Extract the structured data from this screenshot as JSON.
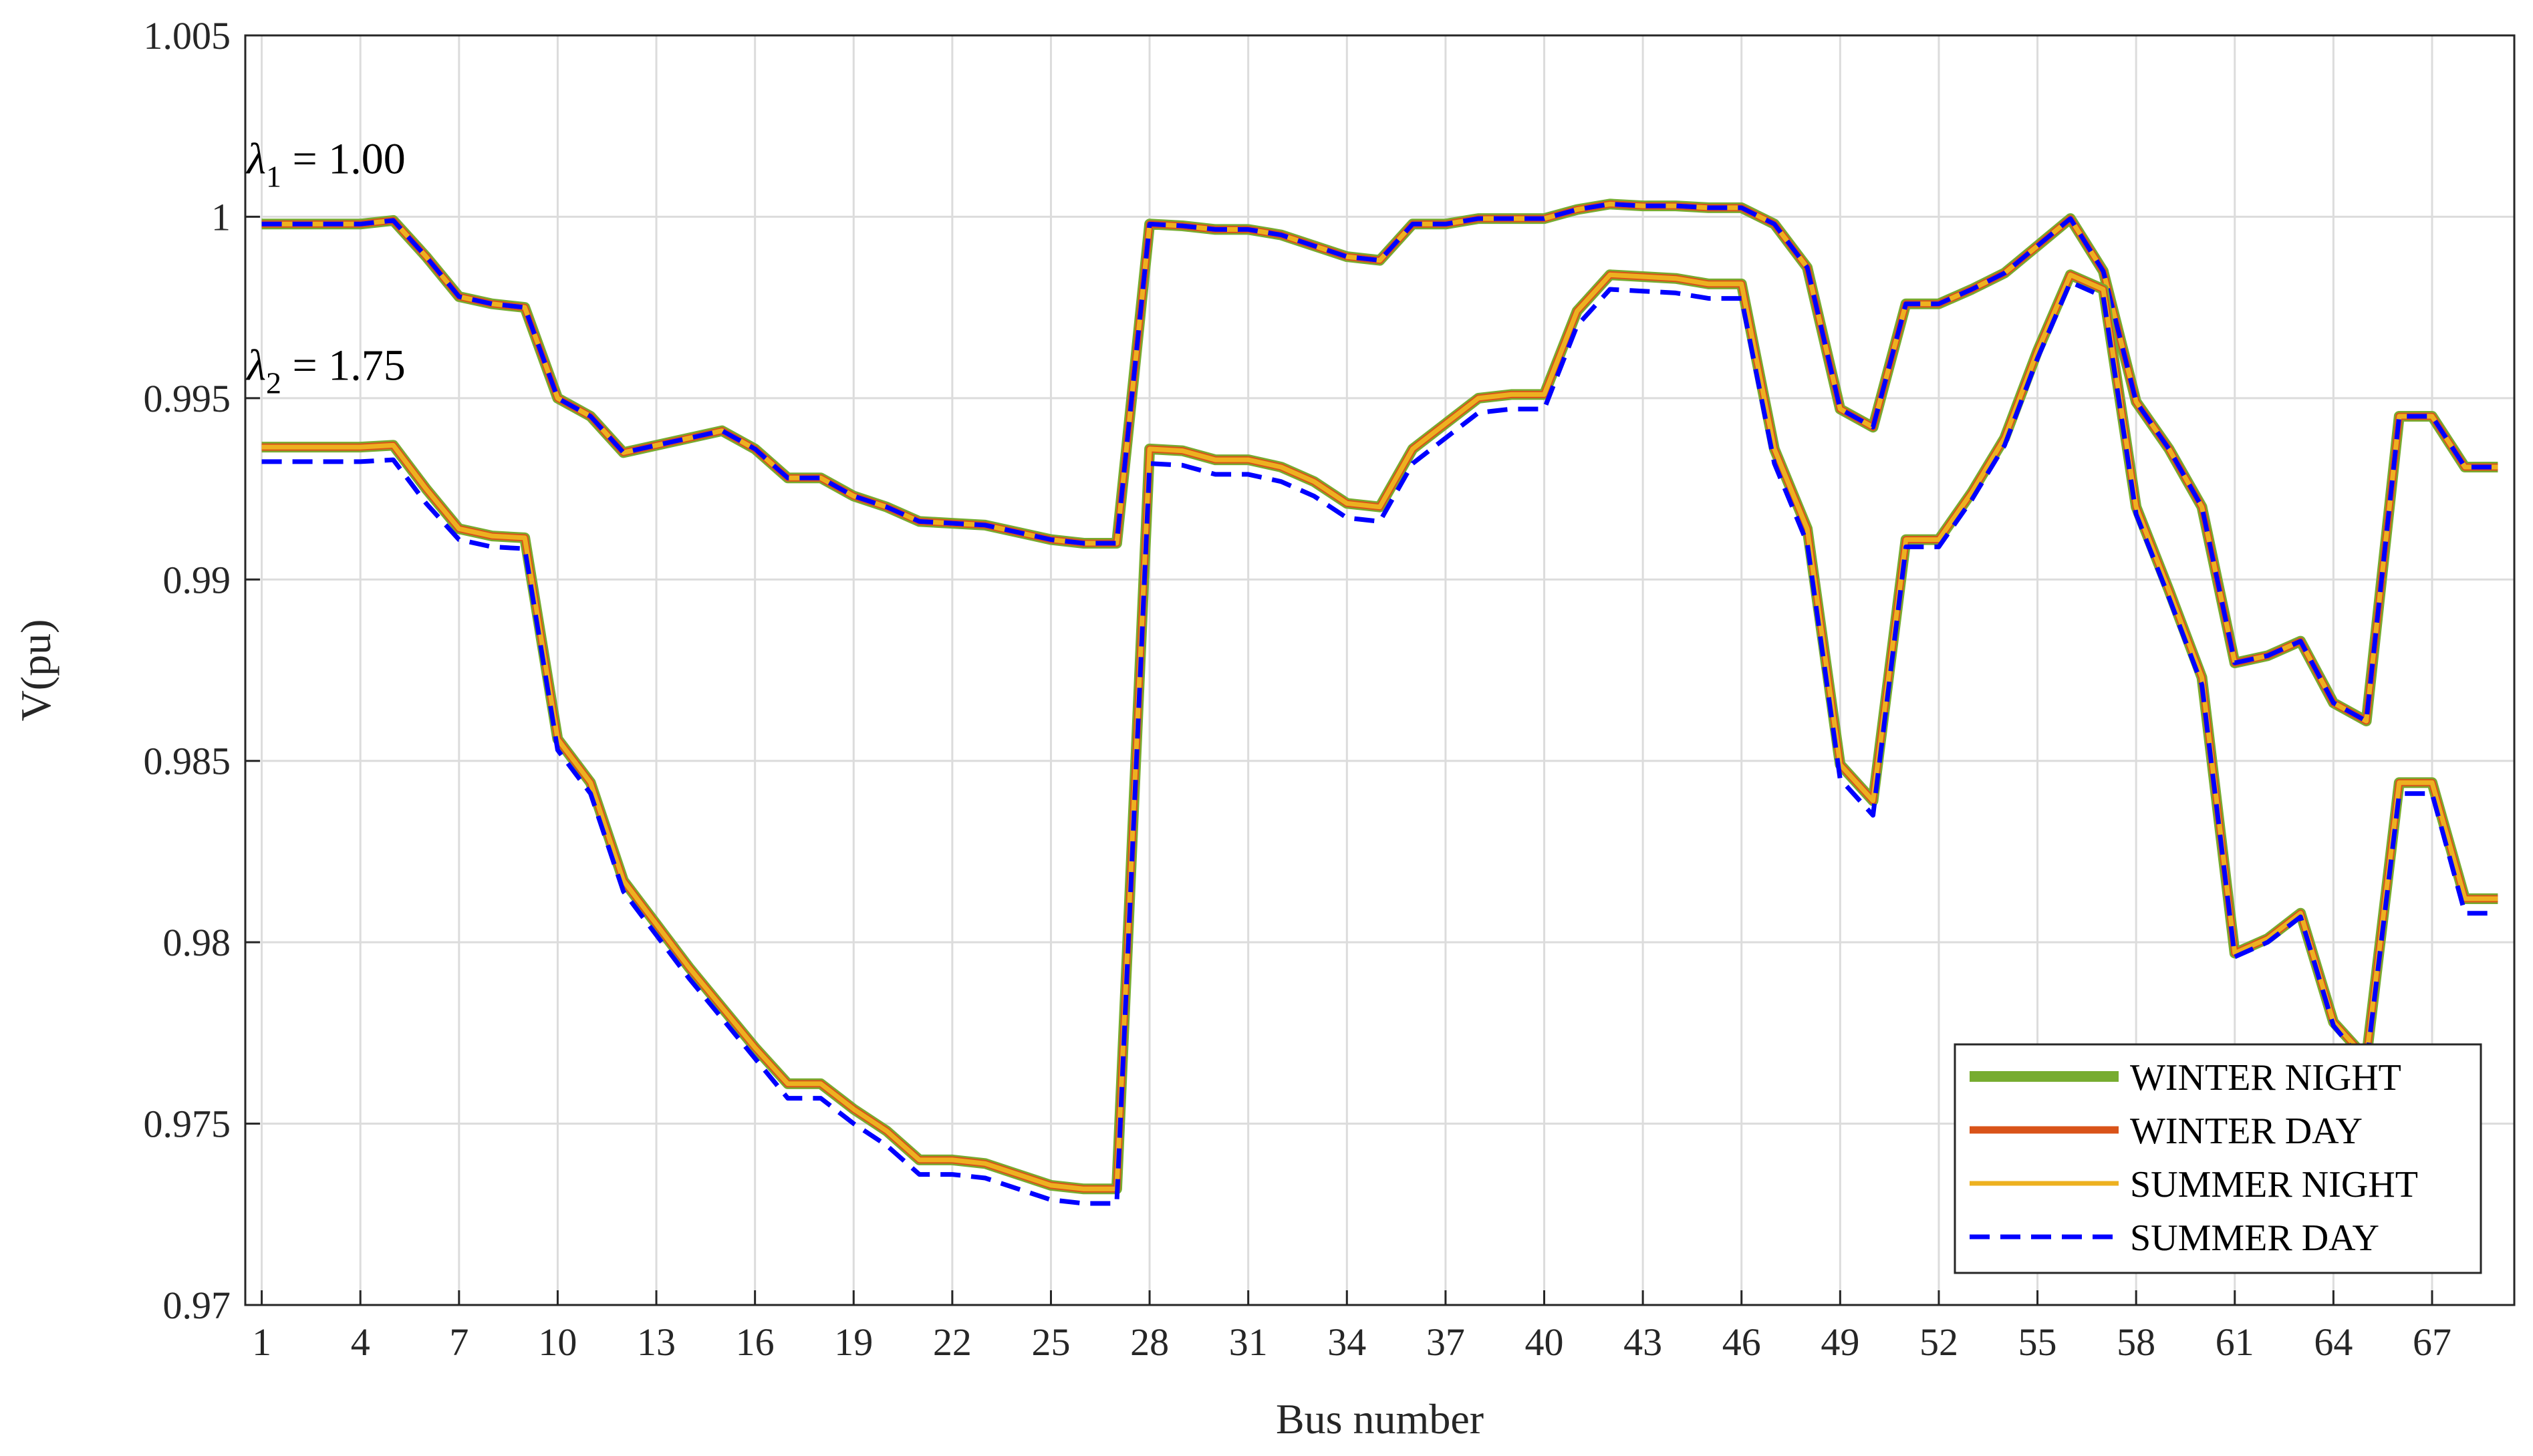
{
  "chart_data": {
    "type": "line",
    "xlabel": "Bus number",
    "ylabel": "V(pu)",
    "xlim": [
      0.5,
      69.5
    ],
    "ylim": [
      0.97,
      1.005
    ],
    "xticks": [
      1,
      4,
      7,
      10,
      13,
      16,
      19,
      22,
      25,
      28,
      31,
      34,
      37,
      40,
      43,
      46,
      49,
      52,
      55,
      58,
      61,
      64,
      67
    ],
    "yticks": [
      0.97,
      0.975,
      0.98,
      0.985,
      0.99,
      0.995,
      1,
      1.005
    ],
    "ytick_labels": [
      "0.97",
      "0.975",
      "0.98",
      "0.985",
      "0.99",
      "0.995",
      "1",
      "1.005"
    ],
    "grid": true,
    "legend_position": "bottom-right",
    "annotations": [
      {
        "greek": "λ",
        "sub": "1",
        "rest": " = 1.00",
        "x": 0.55,
        "y": 1.0012
      },
      {
        "greek": "λ",
        "sub": "2",
        "rest": " = 1.75",
        "x": 0.55,
        "y": 0.9955
      }
    ],
    "legend": [
      {
        "name": "WINTER NIGHT",
        "color": "#77AC30",
        "style": "solid",
        "width": 16
      },
      {
        "name": "WINTER DAY",
        "color": "#D95319",
        "style": "solid",
        "width": 11
      },
      {
        "name": "SUMMER NIGHT",
        "color": "#EDB120",
        "style": "solid",
        "width": 7
      },
      {
        "name": "SUMMER DAY",
        "color": "#0000FF",
        "style": "dashed",
        "width": 7
      }
    ],
    "groups": [
      {
        "name": "λ1 = 1.00",
        "base": [
          0.9998,
          0.9998,
          0.9998,
          0.9998,
          0.9999,
          0.9989,
          0.9978,
          0.9976,
          0.9975,
          0.995,
          0.9945,
          0.9935,
          0.9937,
          0.9939,
          0.9941,
          0.9936,
          0.9928,
          0.9928,
          0.9923,
          0.992,
          0.9916,
          0.99155,
          0.9915,
          0.9913,
          0.9911,
          0.991,
          0.991,
          0.9998,
          0.99975,
          0.99965,
          0.99965,
          0.9995,
          0.9992,
          0.9989,
          0.9988,
          0.9998,
          0.9998,
          0.99995,
          0.99995,
          0.99995,
          1.0002,
          1.00035,
          1.0003,
          1.0003,
          1.00025,
          1.00025,
          0.9998,
          0.9986,
          0.9947,
          0.9942,
          0.9976,
          0.9976,
          0.998,
          0.99845,
          0.9992,
          0.99995,
          0.9985,
          0.9949,
          0.9936,
          0.992,
          0.9877,
          0.9879,
          0.9883,
          0.9866,
          0.9861,
          0.9945,
          0.9945,
          0.9931,
          0.9931
        ],
        "summer_day_offset": [
          0,
          0,
          0,
          0,
          0,
          0,
          0,
          0,
          0,
          0,
          0,
          0,
          0,
          0,
          0,
          0,
          0,
          0,
          0,
          0,
          0,
          0,
          0,
          0,
          0,
          0,
          0,
          0,
          0,
          0,
          0,
          0,
          0,
          0,
          0,
          0,
          0,
          0,
          0,
          0,
          0,
          0,
          0,
          0,
          0,
          0,
          0,
          0,
          0,
          0,
          0,
          0,
          0,
          0,
          0,
          0,
          0,
          0,
          0,
          0,
          0,
          0,
          0,
          0,
          0,
          0,
          0,
          0,
          0
        ]
      },
      {
        "name": "λ2 = 1.75",
        "base": [
          0.99365,
          0.99365,
          0.99365,
          0.99365,
          0.9937,
          0.9925,
          0.9914,
          0.9912,
          0.99115,
          0.9856,
          0.9844,
          0.9817,
          0.9805,
          0.9793,
          0.9782,
          0.9771,
          0.9761,
          0.9761,
          0.9754,
          0.9748,
          0.974,
          0.974,
          0.9739,
          0.9736,
          0.9733,
          0.9732,
          0.9732,
          0.9936,
          0.99355,
          0.9933,
          0.9933,
          0.9931,
          0.9927,
          0.9921,
          0.992,
          0.9936,
          0.9943,
          0.995,
          0.9951,
          0.9951,
          0.9974,
          0.9984,
          0.99835,
          0.9983,
          0.99815,
          0.99815,
          0.9936,
          0.9914,
          0.9849,
          0.9839,
          0.9911,
          0.9911,
          0.9924,
          0.9939,
          0.9963,
          0.9984,
          0.998,
          0.992,
          0.9897,
          0.9873,
          0.9797,
          0.9801,
          0.9808,
          0.9778,
          0.9768,
          0.9844,
          0.9844,
          0.9812,
          0.9812
        ],
        "summer_day_offset": [
          -0.0004,
          -0.0004,
          -0.0004,
          -0.0004,
          -0.0004,
          -0.0004,
          -0.0003,
          -0.0003,
          -0.0003,
          -0.0003,
          -0.0003,
          -0.0003,
          -0.0003,
          -0.0003,
          -0.0003,
          -0.0003,
          -0.0004,
          -0.0004,
          -0.0004,
          -0.0004,
          -0.0004,
          -0.0004,
          -0.0004,
          -0.0004,
          -0.0004,
          -0.0004,
          -0.0004,
          -0.0004,
          -0.0004,
          -0.0004,
          -0.0004,
          -0.0004,
          -0.0004,
          -0.0004,
          -0.0004,
          -0.0004,
          -0.0004,
          -0.0004,
          -0.0004,
          -0.0004,
          -0.0004,
          -0.0004,
          -0.0004,
          -0.0004,
          -0.0004,
          -0.0004,
          -0.0004,
          -0.0004,
          -0.0004,
          -0.0004,
          -0.0002,
          -0.0002,
          -0.0002,
          -0.0002,
          -0.0002,
          -0.0002,
          -0.0002,
          -0.0002,
          -0.0002,
          -0.0002,
          -0.0001,
          -0.0001,
          -0.0001,
          -0.0001,
          -0.0002,
          -0.0003,
          -0.0003,
          -0.0004,
          -0.0004
        ]
      }
    ]
  }
}
